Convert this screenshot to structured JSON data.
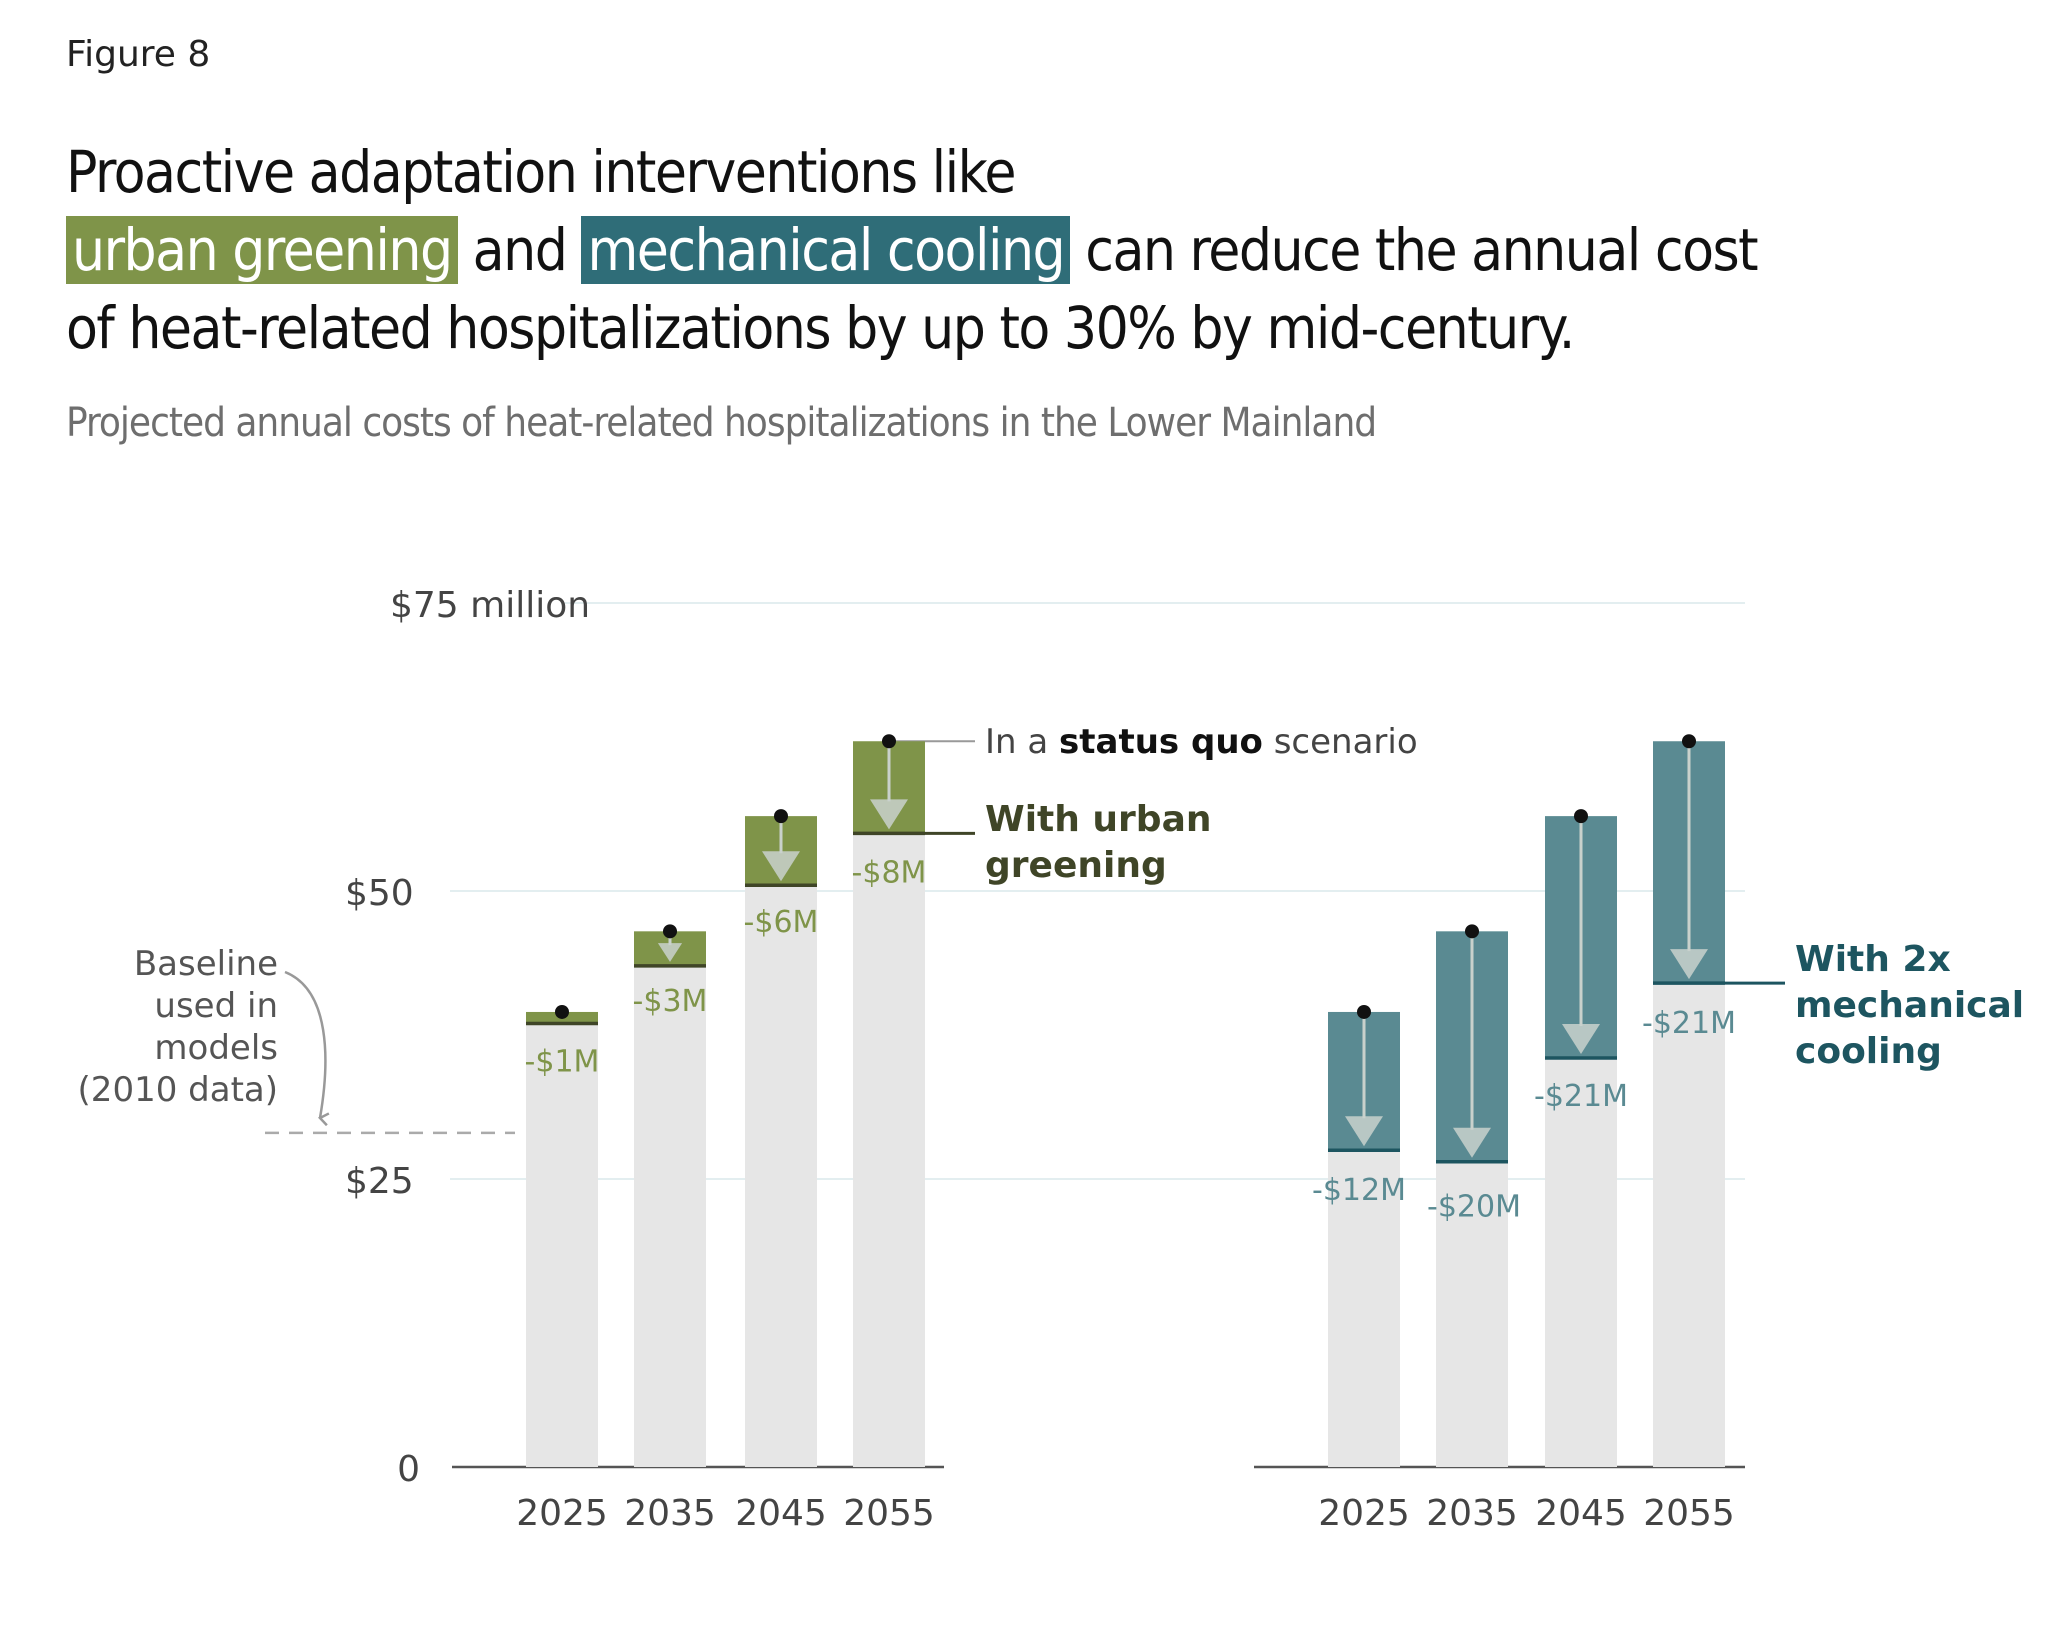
{
  "figure_label": "Figure 8",
  "headline": {
    "line1": "Proactive adaptation interventions like",
    "green_phrase": "urban greening",
    "and_word": "and",
    "teal_phrase": "mechanical cooling",
    "line2_rest": "can reduce the annual cost",
    "line3": "of heat-related hospitalizations by up to 30% by mid-century."
  },
  "subtitle": "Projected annual costs of heat-related hospitalizations in the Lower Mainland",
  "colors": {
    "green": "#7f9449",
    "green_dark": "#3f4527",
    "teal": "#5a8a92",
    "teal_dark": "#1d5560",
    "bar_base": "#e6e6e6",
    "gridline": "#e3eef0",
    "axis_text": "#444444"
  },
  "chart_data": [
    {
      "type": "bar",
      "panel": "urban-greening",
      "categories": [
        "2025",
        "2035",
        "2045",
        "2055"
      ],
      "series": [
        {
          "name": "In a status quo scenario",
          "values": [
            39.5,
            46.5,
            56.5,
            63.0
          ]
        },
        {
          "name": "With urban greening",
          "values": [
            38.5,
            43.5,
            50.5,
            55.0
          ]
        }
      ],
      "reduction_labels": [
        "-$1M",
        "-$3M",
        "-$6M",
        "-$8M"
      ],
      "ylim": [
        0,
        75
      ],
      "yticks": [
        0,
        25,
        50,
        75
      ],
      "ytick_labels": [
        "0",
        "$25",
        "$50",
        "$75 million"
      ],
      "baseline": {
        "value": 29,
        "label": [
          "Baseline",
          "used in",
          "models",
          "(2010 data)"
        ]
      },
      "annotations": {
        "status_quo": {
          "prefix": "In a ",
          "bold": "status quo",
          "suffix": " scenario"
        },
        "intervention": [
          "With urban",
          "greening"
        ]
      }
    },
    {
      "type": "bar",
      "panel": "mechanical-cooling",
      "categories": [
        "2025",
        "2035",
        "2045",
        "2055"
      ],
      "series": [
        {
          "name": "In a status quo scenario",
          "values": [
            39.5,
            46.5,
            56.5,
            63.0
          ]
        },
        {
          "name": "With 2x mechanical cooling",
          "values": [
            27.5,
            26.5,
            35.5,
            42.0
          ]
        }
      ],
      "reduction_labels": [
        "-$12M",
        "-$20M",
        "-$21M",
        "-$21M"
      ],
      "annotations": {
        "intervention": [
          "With 2x",
          "mechanical",
          "cooling"
        ]
      }
    }
  ]
}
